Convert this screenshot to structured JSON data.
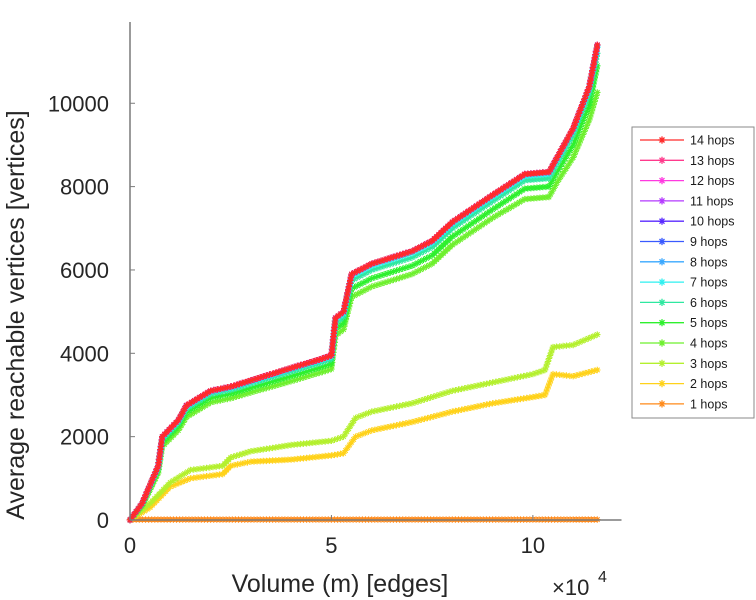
{
  "chart_data": {
    "type": "line",
    "title": "",
    "xlabel": "Volume (m) [edges]",
    "ylabel": "Average reachable vertices [vertices]",
    "x_multiplier_label": "×10",
    "x_multiplier_exponent": "4",
    "xlim": [
      0,
      12.2
    ],
    "ylim": [
      0,
      11950
    ],
    "x_ticks": [
      0,
      5,
      10
    ],
    "x_tick_labels": [
      "0",
      "5",
      "10"
    ],
    "y_ticks": [
      0,
      2000,
      4000,
      6000,
      8000,
      10000
    ],
    "y_tick_labels": [
      "0",
      "2000",
      "4000",
      "6000",
      "8000",
      "10000"
    ],
    "grid": false,
    "legend_position": "right",
    "marker": "asterisk",
    "series": [
      {
        "name": "14 hops",
        "color": "#ff2a2a",
        "x": [
          0,
          0.3,
          0.7,
          0.8,
          1.2,
          1.4,
          2,
          2.5,
          3,
          4,
          4.7,
          5.0,
          5.1,
          5.3,
          5.5,
          6,
          7,
          7.5,
          8,
          9,
          9.8,
          10.4,
          10.6,
          11,
          11.4,
          11.6
        ],
        "y": [
          0,
          400,
          1300,
          2000,
          2400,
          2750,
          3100,
          3200,
          3350,
          3650,
          3850,
          3950,
          4850,
          5000,
          5900,
          6150,
          6450,
          6700,
          7150,
          7800,
          8300,
          8350,
          8700,
          9400,
          10400,
          11400
        ]
      },
      {
        "name": "13 hops",
        "color": "#ff3a8c",
        "x": [
          0,
          0.3,
          0.7,
          0.8,
          1.2,
          1.4,
          2,
          2.5,
          3,
          4,
          4.7,
          5.0,
          5.1,
          5.3,
          5.5,
          6,
          7,
          7.5,
          8,
          9,
          9.8,
          10.4,
          10.6,
          11,
          11.4,
          11.6
        ],
        "y": [
          0,
          400,
          1300,
          2000,
          2400,
          2750,
          3100,
          3200,
          3350,
          3650,
          3850,
          3950,
          4850,
          5000,
          5900,
          6150,
          6450,
          6700,
          7150,
          7800,
          8300,
          8350,
          8700,
          9400,
          10400,
          11400
        ]
      },
      {
        "name": "12 hops",
        "color": "#ff3ae0",
        "x": [
          0,
          0.3,
          0.7,
          0.8,
          1.2,
          1.4,
          2,
          2.5,
          3,
          4,
          4.7,
          5.0,
          5.1,
          5.3,
          5.5,
          6,
          7,
          7.5,
          8,
          9,
          9.8,
          10.4,
          10.6,
          11,
          11.4,
          11.6
        ],
        "y": [
          0,
          400,
          1300,
          2000,
          2400,
          2750,
          3100,
          3200,
          3350,
          3650,
          3850,
          3950,
          4850,
          5000,
          5900,
          6150,
          6450,
          6700,
          7150,
          7800,
          8300,
          8350,
          8700,
          9400,
          10400,
          11400
        ]
      },
      {
        "name": "11 hops",
        "color": "#b43aff",
        "x": [
          0,
          0.3,
          0.7,
          0.8,
          1.2,
          1.4,
          2,
          2.5,
          3,
          4,
          4.7,
          5.0,
          5.1,
          5.3,
          5.5,
          6,
          7,
          7.5,
          8,
          9,
          9.8,
          10.4,
          10.6,
          11,
          11.4,
          11.6
        ],
        "y": [
          0,
          400,
          1300,
          2000,
          2400,
          2750,
          3100,
          3200,
          3350,
          3650,
          3850,
          3950,
          4850,
          5000,
          5900,
          6150,
          6450,
          6700,
          7150,
          7800,
          8300,
          8350,
          8700,
          9400,
          10400,
          11400
        ]
      },
      {
        "name": "10 hops",
        "color": "#5a2aff",
        "x": [
          0,
          0.3,
          0.7,
          0.8,
          1.2,
          1.4,
          2,
          2.5,
          3,
          4,
          4.7,
          5.0,
          5.1,
          5.3,
          5.5,
          6,
          7,
          7.5,
          8,
          9,
          9.8,
          10.4,
          10.6,
          11,
          11.4,
          11.6
        ],
        "y": [
          0,
          400,
          1300,
          2000,
          2400,
          2750,
          3100,
          3200,
          3350,
          3650,
          3850,
          3950,
          4850,
          5000,
          5900,
          6150,
          6450,
          6700,
          7150,
          7800,
          8300,
          8350,
          8700,
          9400,
          10400,
          11400
        ]
      },
      {
        "name": "9 hops",
        "color": "#3a5aff",
        "x": [
          0,
          0.3,
          0.7,
          0.8,
          1.2,
          1.4,
          2,
          2.5,
          3,
          4,
          4.7,
          5.0,
          5.1,
          5.3,
          5.5,
          6,
          7,
          7.5,
          8,
          9,
          9.8,
          10.4,
          10.6,
          11,
          11.4,
          11.6
        ],
        "y": [
          0,
          400,
          1300,
          2000,
          2400,
          2750,
          3100,
          3200,
          3350,
          3650,
          3850,
          3950,
          4850,
          5000,
          5900,
          6150,
          6450,
          6700,
          7150,
          7800,
          8300,
          8350,
          8700,
          9400,
          10400,
          11400
        ]
      },
      {
        "name": "8 hops",
        "color": "#3aa8ff",
        "x": [
          0,
          0.3,
          0.7,
          0.8,
          1.2,
          1.4,
          2,
          2.5,
          3,
          4,
          4.7,
          5.0,
          5.1,
          5.3,
          5.5,
          6,
          7,
          7.5,
          8,
          9,
          9.8,
          10.4,
          10.6,
          11,
          11.4,
          11.6
        ],
        "y": [
          0,
          395,
          1290,
          1990,
          2390,
          2740,
          3090,
          3190,
          3340,
          3640,
          3840,
          3940,
          4840,
          4990,
          5890,
          6140,
          6440,
          6690,
          7140,
          7790,
          8290,
          8340,
          8690,
          9390,
          10390,
          11380
        ]
      },
      {
        "name": "7 hops",
        "color": "#2ef0f0",
        "x": [
          0,
          0.3,
          0.7,
          0.8,
          1.2,
          1.4,
          2,
          2.5,
          3,
          4,
          4.7,
          5.0,
          5.1,
          5.3,
          5.5,
          6,
          7,
          7.5,
          8,
          9,
          9.8,
          10.4,
          10.6,
          11,
          11.4,
          11.6
        ],
        "y": [
          0,
          390,
          1280,
          1970,
          2370,
          2720,
          3070,
          3170,
          3320,
          3620,
          3820,
          3920,
          4800,
          4950,
          5850,
          6100,
          6400,
          6650,
          7100,
          7750,
          8250,
          8300,
          8650,
          9350,
          10350,
          11340
        ]
      },
      {
        "name": "6 hops",
        "color": "#2ee8a0",
        "x": [
          0,
          0.3,
          0.7,
          0.8,
          1.2,
          1.4,
          2,
          2.5,
          3,
          4,
          4.7,
          5.0,
          5.1,
          5.3,
          5.5,
          6,
          7,
          7.5,
          8,
          9,
          9.8,
          10.4,
          10.6,
          11,
          11.4,
          11.6
        ],
        "y": [
          0,
          380,
          1250,
          1930,
          2330,
          2670,
          3020,
          3120,
          3270,
          3560,
          3760,
          3860,
          4720,
          4870,
          5750,
          6000,
          6300,
          6550,
          7000,
          7650,
          8150,
          8200,
          8550,
          9250,
          10250,
          11200
        ]
      },
      {
        "name": "5 hops",
        "color": "#2ef02e",
        "x": [
          0,
          0.3,
          0.7,
          0.8,
          1.2,
          1.4,
          2,
          2.5,
          3,
          4,
          4.7,
          5.0,
          5.1,
          5.3,
          5.5,
          6,
          7,
          7.5,
          8,
          9,
          9.8,
          10.4,
          10.6,
          11,
          11.4,
          11.6
        ],
        "y": [
          0,
          360,
          1200,
          1860,
          2250,
          2580,
          2930,
          3030,
          3170,
          3450,
          3650,
          3750,
          4580,
          4730,
          5550,
          5800,
          6100,
          6350,
          6800,
          7450,
          7950,
          8000,
          8350,
          9000,
          9950,
          10900
        ]
      },
      {
        "name": "4 hops",
        "color": "#6ef02e",
        "x": [
          0,
          0.3,
          0.7,
          0.8,
          1.2,
          1.4,
          2,
          2.5,
          3,
          4,
          4.7,
          5.0,
          5.1,
          5.3,
          5.5,
          6,
          7,
          7.5,
          8,
          9,
          9.8,
          10.4,
          10.6,
          11,
          11.4,
          11.6
        ],
        "y": [
          0,
          330,
          1130,
          1760,
          2150,
          2470,
          2820,
          2920,
          3060,
          3330,
          3530,
          3620,
          4420,
          4570,
          5350,
          5600,
          5900,
          6150,
          6600,
          7250,
          7700,
          7750,
          8100,
          8700,
          9600,
          10260
        ]
      },
      {
        "name": "3 hops",
        "color": "#b4f02e",
        "x": [
          0,
          0.5,
          1,
          1.5,
          2.3,
          2.5,
          3,
          4,
          5,
          5.3,
          5.6,
          6,
          7,
          8,
          9,
          10,
          10.3,
          10.5,
          11,
          11.6
        ],
        "y": [
          0,
          400,
          900,
          1200,
          1300,
          1500,
          1650,
          1800,
          1900,
          2000,
          2450,
          2600,
          2800,
          3100,
          3300,
          3500,
          3600,
          4150,
          4200,
          4450
        ]
      },
      {
        "name": "2 hops",
        "color": "#ffd21a",
        "x": [
          0,
          0.5,
          1,
          1.5,
          2.3,
          2.5,
          3,
          4,
          5,
          5.3,
          5.6,
          6,
          7,
          8,
          9,
          10,
          10.3,
          10.5,
          11,
          11.6
        ],
        "y": [
          0,
          300,
          800,
          1000,
          1100,
          1300,
          1400,
          1450,
          1550,
          1600,
          2000,
          2150,
          2350,
          2600,
          2800,
          2950,
          3000,
          3500,
          3450,
          3600
        ]
      },
      {
        "name": "1 hops",
        "color": "#ff8a1a",
        "x": [
          0,
          1,
          2,
          3,
          4,
          5,
          6,
          7,
          8,
          9,
          10,
          11,
          11.6
        ],
        "y": [
          10,
          10,
          10,
          10,
          10,
          10,
          10,
          10,
          10,
          10,
          10,
          10,
          10
        ]
      }
    ]
  }
}
